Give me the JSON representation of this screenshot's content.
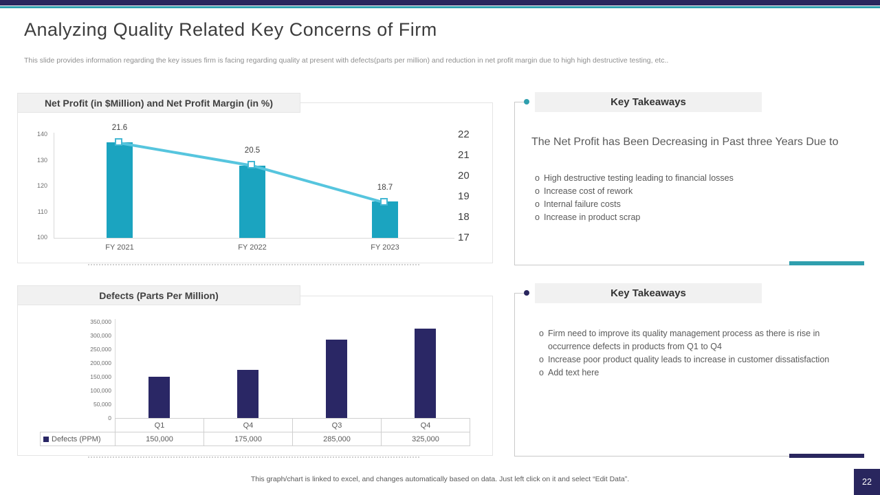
{
  "slide": {
    "title": "Analyzing Quality Related Key Concerns of Firm",
    "subtitle": "This slide provides information regarding the key issues firm is facing regarding quality at present with defects(parts per million) and reduction in net profit margin due to high high destructive testing, etc..",
    "footer_note": "This graph/chart is linked to excel,  and changes automatically based on data. Just left click on it and select “Edit Data”.",
    "page_number": "22"
  },
  "colors": {
    "navy": "#29265e",
    "teal_accent": "#2f9fae",
    "teal_bar": "#1ba4c0",
    "line_blue": "#56c5de",
    "header_bg": "#f1f1f1",
    "text_gray": "#595959"
  },
  "chart_data": [
    {
      "type": "bar",
      "title": "Net Profit (in $Million) and Net Profit Margin (in %)",
      "categories": [
        "FY 2021",
        "FY 2022",
        "FY 2023"
      ],
      "series": [
        {
          "name": "Net Profit ($ Million)",
          "type": "bar",
          "axis": "left",
          "values": [
            137,
            128,
            114
          ]
        },
        {
          "name": "Net Profit Margin (%)",
          "type": "line",
          "axis": "right",
          "values": [
            21.6,
            20.5,
            18.7
          ],
          "point_labels": [
            "21.6",
            "20.5",
            "18.7"
          ]
        }
      ],
      "left_axis": {
        "min": 100,
        "max": 140,
        "ticks": [
          "140",
          "130",
          "120",
          "110",
          "100"
        ]
      },
      "right_axis": {
        "min": 17,
        "max": 22,
        "ticks": [
          "22",
          "21",
          "20",
          "19",
          "18",
          "17"
        ]
      },
      "grid": false,
      "legend_position": "none"
    },
    {
      "type": "bar",
      "title": "Defects (Parts Per Million)",
      "categories": [
        "Q1",
        "Q4",
        "Q3",
        "Q4"
      ],
      "values": [
        150000,
        175000,
        285000,
        325000
      ],
      "value_labels": [
        "150,000",
        "175,000",
        "285,000",
        "325,000"
      ],
      "ylim": [
        0,
        350000
      ],
      "y_ticks": [
        "350,000",
        "300,000",
        "250,000",
        "200,000",
        "150,000",
        "100,000",
        "50,000",
        "0"
      ],
      "legend": "Defects (PPM)",
      "grid": false,
      "legend_position": "table-left"
    }
  ],
  "takeaways": [
    {
      "header": "Key Takeaways",
      "heading": "The Net Profit has Been Decreasing in Past three Years Due to",
      "bullet_char": "o",
      "bullets": [
        "High destructive testing leading to financial losses",
        "Increase  cost of rework",
        "Internal  failure costs",
        "Increase  in product scrap"
      ]
    },
    {
      "header": "Key Takeaways",
      "heading": "",
      "bullet_char": "o",
      "bullets": [
        "Firm need to improve its quality management  process as there is rise in occurrence  defects in products  from Q1 to Q4",
        "Increase  poor product quality  leads to increase in customer dissatisfaction",
        "Add text here"
      ]
    }
  ]
}
